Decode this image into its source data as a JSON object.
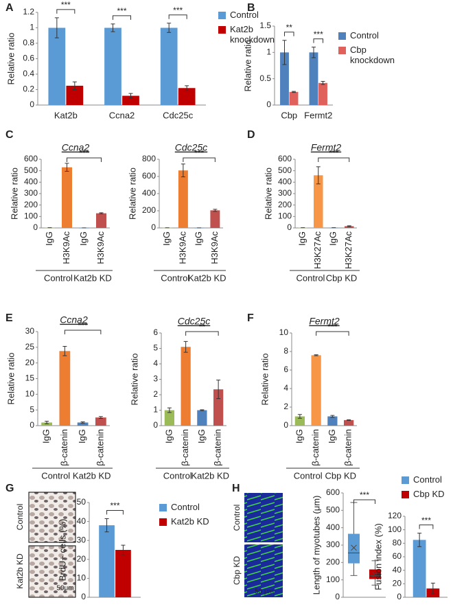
{
  "chart_data": [
    {
      "panel": "A",
      "type": "bar",
      "ylabel": "Relative ratio",
      "categories": [
        "Kat2b",
        "Ccna2",
        "Cdc25c"
      ],
      "series": [
        {
          "name": "Control",
          "color": "#5b9bd5",
          "values": [
            1,
            1,
            1
          ],
          "errors": [
            0.13,
            0.05,
            0.06
          ]
        },
        {
          "name": "Kat2b knockdown",
          "color": "#c00000",
          "values": [
            0.25,
            0.12,
            0.22
          ],
          "errors": [
            0.05,
            0.03,
            0.03
          ]
        }
      ],
      "ylim": [
        0,
        1.2
      ],
      "yticks": [
        0,
        0.2,
        0.4,
        0.6,
        0.8,
        1,
        1.2
      ],
      "significance": [
        "***",
        "***",
        "***"
      ],
      "legend": true
    },
    {
      "panel": "B",
      "type": "bar",
      "ylabel": "Relative ratio",
      "categories": [
        "Cbp",
        "Fermt2"
      ],
      "series": [
        {
          "name": "Control",
          "color": "#4f81bd",
          "values": [
            1,
            1
          ],
          "errors": [
            0.23,
            0.1
          ]
        },
        {
          "name": "Cbp knockdown",
          "color": "#e0605c",
          "values": [
            0.25,
            0.42
          ],
          "errors": [
            0.01,
            0.03
          ]
        }
      ],
      "ylim": [
        0,
        1.5
      ],
      "yticks": [
        0,
        0.5,
        1,
        1.5
      ],
      "significance": [
        "**",
        "***"
      ],
      "legend": true
    },
    {
      "panel": "C",
      "type": "bar",
      "title": "Ccna2",
      "ylabel": "Relative ratio",
      "categories": [
        "IgG",
        "H3K9Ac",
        "IgG",
        "H3K9Ac"
      ],
      "groups": [
        "Control",
        "Kat2b KD"
      ],
      "values": [
        2,
        530,
        1,
        128
      ],
      "errors": [
        0,
        35,
        0,
        5
      ],
      "colors": [
        "#9bbb59",
        "#ed7d31",
        "#4f81bd",
        "#c0504d"
      ],
      "ylim": [
        0,
        600
      ],
      "yticks": [
        0,
        100,
        200,
        300,
        400,
        500,
        600
      ],
      "significance": "***"
    },
    {
      "type": "bar",
      "title": "Cdc25c",
      "ylabel": "Relative ratio",
      "categories": [
        "IgG",
        "H3K9Ac",
        "IgG",
        "H3K9Ac"
      ],
      "groups": [
        "Control",
        "Kat2b KD"
      ],
      "values": [
        2,
        670,
        1,
        205
      ],
      "errors": [
        0,
        75,
        0,
        12
      ],
      "colors": [
        "#9bbb59",
        "#ed7d31",
        "#4f81bd",
        "#c0504d"
      ],
      "ylim": [
        0,
        800
      ],
      "yticks": [
        0,
        200,
        400,
        600,
        800
      ],
      "significance": "***"
    },
    {
      "panel": "D",
      "type": "bar",
      "title": "Fermt2",
      "ylabel": "Relative ratio",
      "categories": [
        "IgG",
        "H3K27Ac",
        "IgG",
        "H3K27Ac"
      ],
      "groups": [
        "Control",
        "Cbp KD"
      ],
      "values": [
        2,
        460,
        2,
        15
      ],
      "errors": [
        0,
        75,
        0,
        4
      ],
      "colors": [
        "#9bbb59",
        "#f79646",
        "#4f81bd",
        "#c0504d"
      ],
      "ylim": [
        0,
        600
      ],
      "yticks": [
        0,
        100,
        200,
        300,
        400,
        500,
        600
      ],
      "significance": "***"
    },
    {
      "panel": "E",
      "type": "bar",
      "title": "Ccna2",
      "ylabel": "Relative ratio",
      "categories": [
        "IgG",
        "β-catenin",
        "IgG",
        "β-catenin"
      ],
      "groups": [
        "Control",
        "Kat2b KD"
      ],
      "values": [
        1,
        23.8,
        1,
        2.6
      ],
      "errors": [
        0.4,
        1.5,
        0.2,
        0.3
      ],
      "colors": [
        "#9bbb59",
        "#ed7d31",
        "#4f81bd",
        "#c0504d"
      ],
      "ylim": [
        0,
        30
      ],
      "yticks": [
        0,
        5,
        10,
        15,
        20,
        25,
        30
      ],
      "significance": "***"
    },
    {
      "type": "bar",
      "title": "Cdc25c",
      "ylabel": "Relative ratio",
      "categories": [
        "IgG",
        "β-catenin",
        "IgG",
        "β-catenin"
      ],
      "groups": [
        "Control",
        "Kat2b KD"
      ],
      "values": [
        1,
        5.1,
        1,
        2.35
      ],
      "errors": [
        0.15,
        0.35,
        0.03,
        0.6
      ],
      "colors": [
        "#9bbb59",
        "#ed7d31",
        "#4f81bd",
        "#c0504d"
      ],
      "ylim": [
        0,
        6
      ],
      "yticks": [
        0,
        1,
        2,
        3,
        4,
        5,
        6
      ],
      "significance": "**"
    },
    {
      "panel": "F",
      "type": "bar",
      "title": "Fermt2",
      "ylabel": "Relative ratio",
      "categories": [
        "IgG",
        "β-catenin",
        "IgG",
        "β-catenin"
      ],
      "groups": [
        "Control",
        "Cbp KD"
      ],
      "values": [
        1,
        7.6,
        1,
        0.6
      ],
      "errors": [
        0.2,
        0.05,
        0.1,
        0.03
      ],
      "colors": [
        "#9bbb59",
        "#f79646",
        "#4f81bd",
        "#c0504d"
      ],
      "ylim": [
        0,
        10
      ],
      "yticks": [
        0,
        2,
        4,
        6,
        8,
        10
      ],
      "significance": "***"
    },
    {
      "panel": "G",
      "type": "bar",
      "ylabel": "BrdU+ cells (%)",
      "image_labels": [
        "Control",
        "Kat2b KD"
      ],
      "scale_bar": "50μm",
      "series": [
        {
          "name": "Control",
          "color": "#5b9bd5",
          "values": [
            38
          ],
          "errors": [
            3.5
          ]
        },
        {
          "name": "Kat2b KD",
          "color": "#c00000",
          "values": [
            25
          ],
          "errors": [
            2.5
          ]
        }
      ],
      "ylim": [
        0,
        50
      ],
      "yticks": [
        0,
        10,
        20,
        30,
        40,
        50
      ],
      "significance": [
        "***"
      ],
      "legend": true
    },
    {
      "panel": "H",
      "type": "box",
      "ylabel": "Length of myotubes (μm)",
      "image_labels": [
        "Control",
        "Cbp KD"
      ],
      "scale_bar": "50 μm",
      "boxes": [
        {
          "color": "#5b9bd5",
          "min": 125,
          "q1": 195,
          "median": 255,
          "q3": 365,
          "max": 545,
          "mean": 285
        },
        {
          "color": "#c00000",
          "min": 70,
          "q1": 105,
          "median": 125,
          "q3": 160,
          "max": 210,
          "mean": 130
        }
      ],
      "ylim": [
        0,
        600
      ],
      "yticks": [
        0,
        100,
        200,
        300,
        400,
        500,
        600
      ],
      "significance": "***"
    },
    {
      "type": "bar",
      "ylabel": "Fusion index (%)",
      "series": [
        {
          "name": "Control",
          "color": "#5b9bd5",
          "values": [
            85
          ],
          "errors": [
            10
          ]
        },
        {
          "name": "Cbp KD",
          "color": "#c00000",
          "values": [
            13
          ],
          "errors": [
            8
          ]
        }
      ],
      "ylim": [
        0,
        120
      ],
      "yticks": [
        0,
        20,
        40,
        60,
        80,
        100,
        120
      ],
      "significance": [
        "***"
      ],
      "legend": true
    }
  ]
}
